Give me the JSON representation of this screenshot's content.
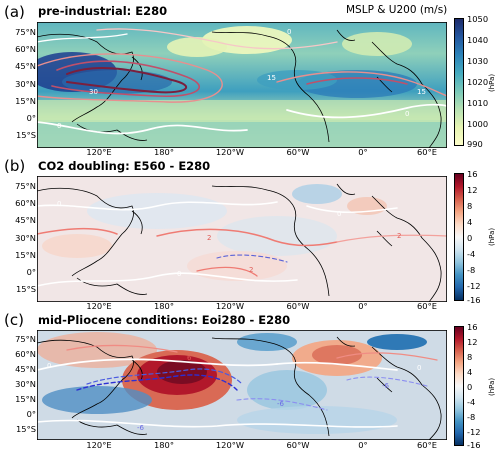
{
  "figure_note": "MSLP & U200 (m/s)",
  "panels": [
    {
      "letter": "(a)",
      "title": "pre-industrial: E280",
      "lat_labels": [
        "75°N",
        "60°N",
        "45°N",
        "30°N",
        "15°N",
        "0°",
        "15°S"
      ],
      "lon_labels": [
        "120°E",
        "180°",
        "120°W",
        "60°W",
        "0°",
        "60°E"
      ],
      "colorbar": {
        "ticks": [
          "1050",
          "1040",
          "1030",
          "1020",
          "1010",
          "1000",
          "990"
        ],
        "unit": "(hPa)",
        "colors": [
          "#1d2b6b",
          "#23579f",
          "#2b83b9",
          "#44aabf",
          "#79c8b9",
          "#b6e1b4",
          "#e6f4b3",
          "#fcfdc9"
        ]
      },
      "contour_labels": [
        "30",
        "15",
        "15",
        "0",
        "0",
        "0"
      ]
    },
    {
      "letter": "(b)",
      "title": "CO2 doubling: E560 - E280",
      "lat_labels": [
        "75°N",
        "60°N",
        "45°N",
        "30°N",
        "15°N",
        "0°",
        "15°S"
      ],
      "lon_labels": [
        "120°E",
        "180°",
        "120°W",
        "60°W",
        "0°",
        "60°E"
      ],
      "colorbar": {
        "ticks": [
          "16",
          "12",
          "8",
          "4",
          "0",
          "-4",
          "-8",
          "-12",
          "-16"
        ],
        "unit": "(hPa)",
        "colors": [
          "#67001f",
          "#b2182b",
          "#d6604d",
          "#f4a582",
          "#fddbc7",
          "#f7f7f7",
          "#d1e5f0",
          "#92c5de",
          "#4393c3",
          "#2166ac",
          "#053061"
        ]
      },
      "contour_labels": [
        "2",
        "2",
        "2",
        "0",
        "0",
        "0"
      ]
    },
    {
      "letter": "(c)",
      "title": "mid-Pliocene conditions: Eoi280 - E280",
      "lat_labels": [
        "75°N",
        "60°N",
        "45°N",
        "30°N",
        "15°N",
        "0°",
        "15°S"
      ],
      "lon_labels": [
        "120°E",
        "180°",
        "120°W",
        "60°W",
        "0°",
        "60°E"
      ],
      "colorbar": {
        "ticks": [
          "16",
          "12",
          "8",
          "4",
          "0",
          "-4",
          "-8",
          "-12",
          "-16"
        ],
        "unit": "(hPa)",
        "colors": [
          "#67001f",
          "#b2182b",
          "#d6604d",
          "#f4a582",
          "#fddbc7",
          "#f7f7f7",
          "#d1e5f0",
          "#92c5de",
          "#4393c3",
          "#2166ac",
          "#053061"
        ]
      },
      "contour_labels": [
        "0",
        "0",
        "-6",
        "-6",
        "6",
        "-6"
      ]
    }
  ]
}
